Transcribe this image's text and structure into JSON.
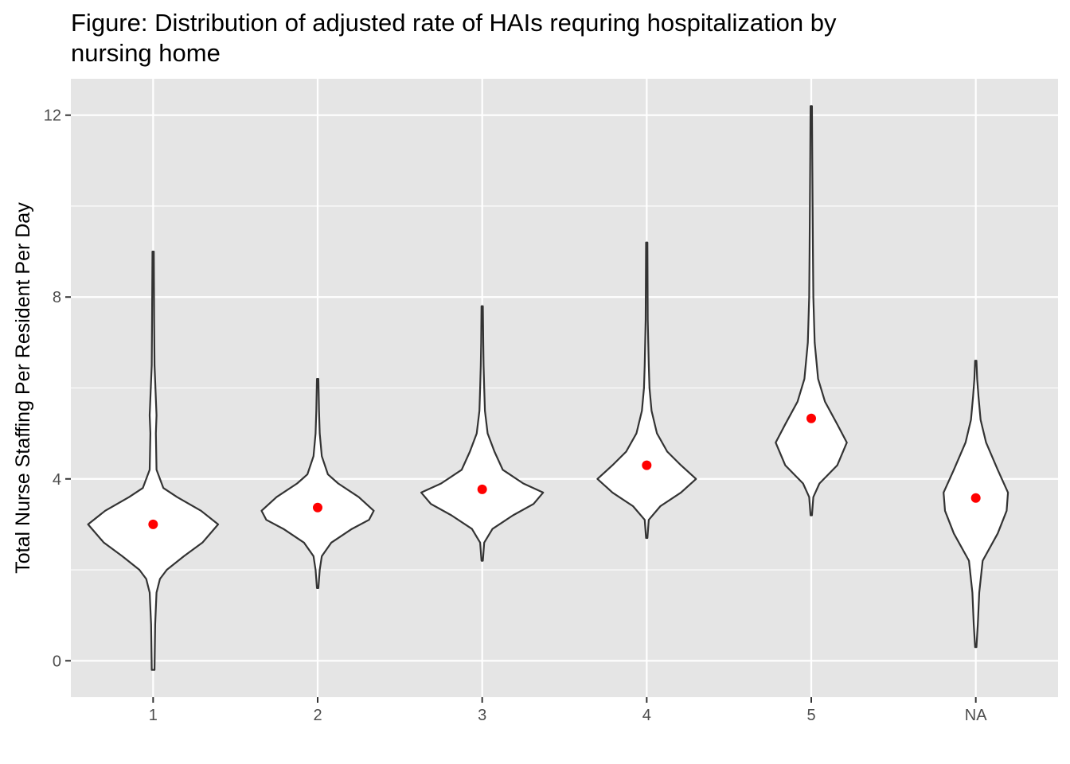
{
  "chart_data": {
    "type": "violin",
    "title": "Figure: Distribution of adjusted rate of HAIs requring hospitalization by\nnursing home",
    "xlabel": "",
    "ylabel": "Total Nurse Staffing Per Resident Per Day",
    "ylim": [
      -0.8,
      12.8
    ],
    "yticks": [
      0,
      4,
      8,
      12
    ],
    "ytick_labels": [
      "0",
      "4",
      "8",
      "12"
    ],
    "categories": [
      "1",
      "2",
      "3",
      "4",
      "5",
      "NA"
    ],
    "mean_points": [
      3.0,
      3.37,
      3.77,
      4.3,
      5.33,
      3.58
    ],
    "point_color": "#ff0000",
    "panel_background": "#e5e5e5",
    "grid": true,
    "violins": [
      {
        "category": "1",
        "profile": [
          [
            -0.2,
            0.02
          ],
          [
            0.8,
            0.03
          ],
          [
            1.5,
            0.05
          ],
          [
            1.8,
            0.1
          ],
          [
            2.0,
            0.2
          ],
          [
            2.3,
            0.45
          ],
          [
            2.6,
            0.72
          ],
          [
            3.0,
            0.95
          ],
          [
            3.3,
            0.7
          ],
          [
            3.6,
            0.35
          ],
          [
            3.8,
            0.15
          ],
          [
            4.2,
            0.05
          ],
          [
            5.0,
            0.04
          ],
          [
            5.4,
            0.05
          ],
          [
            6.5,
            0.02
          ],
          [
            7.5,
            0.015
          ],
          [
            9.0,
            0.01
          ]
        ]
      },
      {
        "category": "2",
        "profile": [
          [
            1.6,
            0.01
          ],
          [
            2.0,
            0.03
          ],
          [
            2.3,
            0.06
          ],
          [
            2.6,
            0.2
          ],
          [
            2.9,
            0.5
          ],
          [
            3.1,
            0.75
          ],
          [
            3.3,
            0.82
          ],
          [
            3.6,
            0.6
          ],
          [
            3.9,
            0.3
          ],
          [
            4.1,
            0.15
          ],
          [
            4.5,
            0.06
          ],
          [
            5.0,
            0.03
          ],
          [
            5.5,
            0.02
          ],
          [
            6.2,
            0.01
          ]
        ]
      },
      {
        "category": "3",
        "profile": [
          [
            2.2,
            0.01
          ],
          [
            2.6,
            0.03
          ],
          [
            2.9,
            0.15
          ],
          [
            3.2,
            0.45
          ],
          [
            3.45,
            0.75
          ],
          [
            3.7,
            0.89
          ],
          [
            3.9,
            0.6
          ],
          [
            4.2,
            0.3
          ],
          [
            4.6,
            0.18
          ],
          [
            5.0,
            0.08
          ],
          [
            5.5,
            0.04
          ],
          [
            6.0,
            0.03
          ],
          [
            6.5,
            0.02
          ],
          [
            7.0,
            0.015
          ],
          [
            7.8,
            0.01
          ]
        ]
      },
      {
        "category": "4",
        "profile": [
          [
            2.7,
            0.01
          ],
          [
            3.1,
            0.03
          ],
          [
            3.4,
            0.2
          ],
          [
            3.7,
            0.5
          ],
          [
            4.0,
            0.72
          ],
          [
            4.3,
            0.5
          ],
          [
            4.6,
            0.3
          ],
          [
            5.0,
            0.15
          ],
          [
            5.5,
            0.07
          ],
          [
            6.0,
            0.04
          ],
          [
            6.5,
            0.03
          ],
          [
            7.5,
            0.015
          ],
          [
            9.2,
            0.01
          ]
        ]
      },
      {
        "category": "5",
        "profile": [
          [
            3.2,
            0.01
          ],
          [
            3.6,
            0.03
          ],
          [
            3.9,
            0.12
          ],
          [
            4.3,
            0.38
          ],
          [
            4.8,
            0.52
          ],
          [
            5.2,
            0.38
          ],
          [
            5.7,
            0.2
          ],
          [
            6.2,
            0.1
          ],
          [
            7.0,
            0.05
          ],
          [
            8.0,
            0.03
          ],
          [
            9.0,
            0.025
          ],
          [
            10.0,
            0.02
          ],
          [
            11.0,
            0.015
          ],
          [
            12.2,
            0.01
          ]
        ]
      },
      {
        "category": "NA",
        "profile": [
          [
            0.3,
            0.01
          ],
          [
            0.8,
            0.03
          ],
          [
            1.5,
            0.05
          ],
          [
            2.2,
            0.1
          ],
          [
            2.8,
            0.32
          ],
          [
            3.3,
            0.45
          ],
          [
            3.7,
            0.47
          ],
          [
            4.2,
            0.32
          ],
          [
            4.8,
            0.15
          ],
          [
            5.3,
            0.07
          ],
          [
            5.8,
            0.04
          ],
          [
            6.2,
            0.02
          ],
          [
            6.6,
            0.01
          ]
        ]
      }
    ]
  }
}
